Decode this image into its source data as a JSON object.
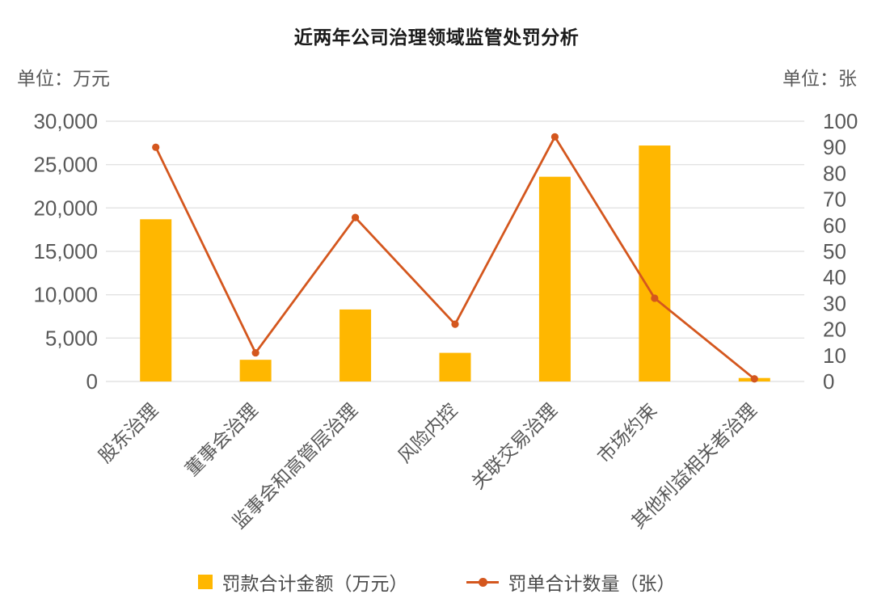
{
  "colors": {
    "bar": "#FFB700",
    "line": "#D4571E",
    "grid": "#E3E3E3",
    "axis_text": "#595959",
    "title_text": "#1A1A1A"
  },
  "chart_data": {
    "type": "combo-bar-line",
    "title": "近两年公司治理领域监管处罚分析",
    "categories": [
      "股东治理",
      "董事会治理",
      "监事会和高管层治理",
      "风险内控",
      "关联交易治理",
      "市场约束",
      "其他利益相关者治理"
    ],
    "left_axis": {
      "unit_label": "单位：万元",
      "min": 0,
      "max": 30000,
      "step": 5000,
      "tick_labels": [
        "30,000",
        "25,000",
        "20,000",
        "15,000",
        "10,000",
        "5,000",
        "0"
      ]
    },
    "right_axis": {
      "unit_label": "单位：张",
      "min": 0,
      "max": 100,
      "step": 10,
      "tick_labels": [
        "100",
        "90",
        "80",
        "70",
        "60",
        "50",
        "40",
        "30",
        "20",
        "10",
        "0"
      ]
    },
    "series": [
      {
        "name": "罚款合计金额（万元）",
        "type": "bar",
        "axis": "left",
        "values": [
          18700,
          2500,
          8300,
          3300,
          23600,
          27200,
          400
        ]
      },
      {
        "name": "罚单合计数量（张）",
        "type": "line",
        "axis": "right",
        "values": [
          90,
          11,
          63,
          22,
          94,
          32,
          1
        ]
      }
    ],
    "legend_position": "bottom",
    "grid": "horizontal"
  }
}
